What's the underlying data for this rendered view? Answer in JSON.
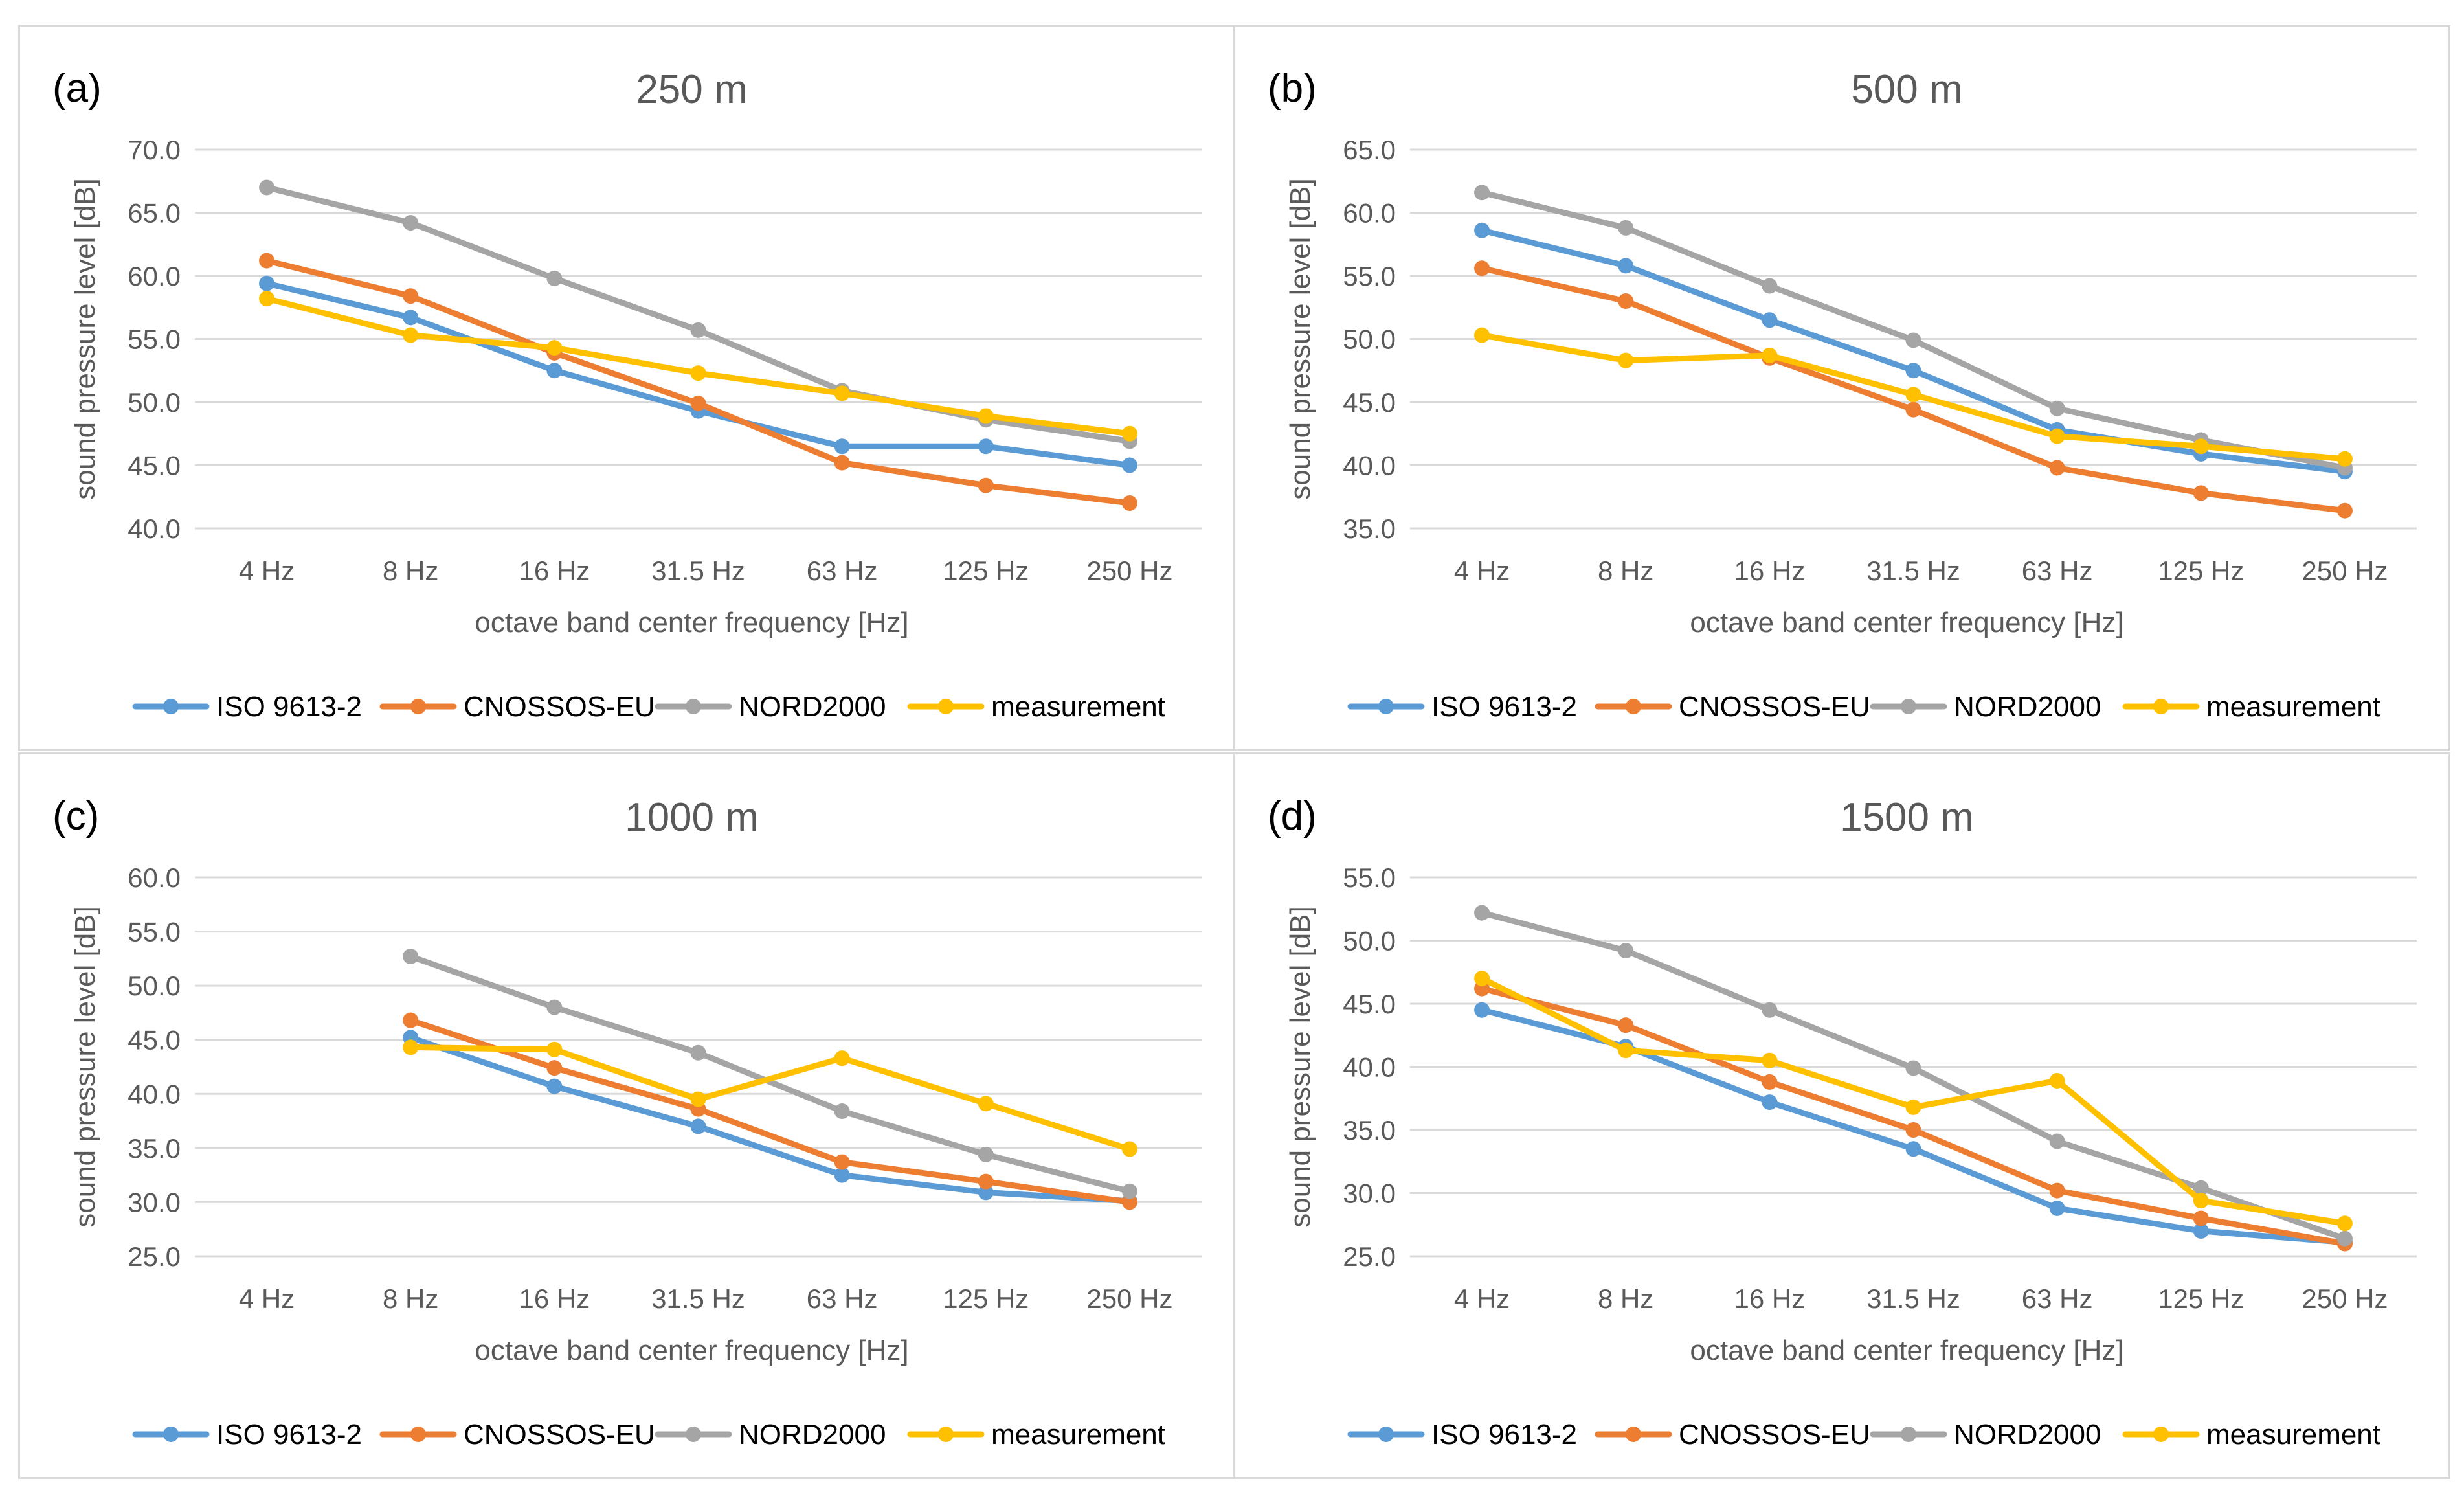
{
  "chart_data": [
    {
      "type": "line",
      "panel_label": "(a)",
      "title": "250 m",
      "xlabel": "octave band center frequency [Hz]",
      "ylabel": "sound pressure level  [dB]",
      "categories": [
        "4 Hz",
        "8 Hz",
        "16 Hz",
        "31.5 Hz",
        "63 Hz",
        "125 Hz",
        "250 Hz"
      ],
      "ylim": [
        40.0,
        70.0
      ],
      "yticks": [
        "40.0",
        "45.0",
        "50.0",
        "55.0",
        "60.0",
        "65.0",
        "70.0"
      ],
      "grid": true,
      "legend": "bottom",
      "series": [
        {
          "name": "ISO 9613-2",
          "color": "#5b9bd5",
          "values": [
            59.4,
            56.7,
            52.5,
            49.3,
            46.5,
            46.5,
            45.0
          ]
        },
        {
          "name": "CNOSSOS-EU",
          "color": "#ed7d31",
          "values": [
            61.2,
            58.4,
            53.9,
            49.9,
            45.2,
            43.4,
            42.0
          ]
        },
        {
          "name": "NORD2000",
          "color": "#a5a5a5",
          "values": [
            67.0,
            64.2,
            59.8,
            55.7,
            50.9,
            48.6,
            46.9
          ]
        },
        {
          "name": "measurement",
          "color": "#ffc000",
          "values": [
            58.2,
            55.3,
            54.3,
            52.3,
            50.7,
            48.9,
            47.5
          ]
        }
      ]
    },
    {
      "type": "line",
      "panel_label": "(b)",
      "title": "500 m",
      "xlabel": "octave band center frequency [Hz]",
      "ylabel": "sound pressure level  [dB]",
      "categories": [
        "4 Hz",
        "8 Hz",
        "16 Hz",
        "31.5 Hz",
        "63 Hz",
        "125 Hz",
        "250 Hz"
      ],
      "ylim": [
        35.0,
        65.0
      ],
      "yticks": [
        "35.0",
        "40.0",
        "45.0",
        "50.0",
        "55.0",
        "60.0",
        "65.0"
      ],
      "grid": true,
      "legend": "bottom",
      "series": [
        {
          "name": "ISO 9613-2",
          "color": "#5b9bd5",
          "values": [
            58.6,
            55.8,
            51.5,
            47.5,
            42.8,
            40.9,
            39.5
          ]
        },
        {
          "name": "CNOSSOS-EU",
          "color": "#ed7d31",
          "values": [
            55.6,
            53.0,
            48.5,
            44.4,
            39.8,
            37.8,
            36.4
          ]
        },
        {
          "name": "NORD2000",
          "color": "#a5a5a5",
          "values": [
            61.6,
            58.8,
            54.2,
            49.9,
            44.5,
            42.0,
            39.8
          ]
        },
        {
          "name": "measurement",
          "color": "#ffc000",
          "values": [
            50.3,
            48.3,
            48.7,
            45.6,
            42.3,
            41.5,
            40.5
          ]
        }
      ]
    },
    {
      "type": "line",
      "panel_label": "(c)",
      "title": "1000 m",
      "xlabel": "octave band center frequency [Hz]",
      "ylabel": "sound pressure level  [dB]",
      "categories": [
        "4 Hz",
        "8 Hz",
        "16 Hz",
        "31.5 Hz",
        "63 Hz",
        "125 Hz",
        "250 Hz"
      ],
      "ylim": [
        25.0,
        60.0
      ],
      "yticks": [
        "25.0",
        "30.0",
        "35.0",
        "40.0",
        "45.0",
        "50.0",
        "55.0",
        "60.0"
      ],
      "grid": true,
      "legend": "bottom",
      "series": [
        {
          "name": "ISO 9613-2",
          "color": "#5b9bd5",
          "values": [
            null,
            45.2,
            40.7,
            37.0,
            32.5,
            30.9,
            30.1
          ]
        },
        {
          "name": "CNOSSOS-EU",
          "color": "#ed7d31",
          "values": [
            null,
            46.8,
            42.4,
            38.6,
            33.7,
            31.9,
            30.0
          ]
        },
        {
          "name": "NORD2000",
          "color": "#a5a5a5",
          "values": [
            null,
            52.7,
            48.0,
            43.8,
            38.4,
            34.4,
            31.0
          ]
        },
        {
          "name": "measurement",
          "color": "#ffc000",
          "values": [
            null,
            44.3,
            44.1,
            39.5,
            43.3,
            39.1,
            34.9
          ]
        }
      ]
    },
    {
      "type": "line",
      "panel_label": "(d)",
      "title": "1500 m",
      "xlabel": "octave band center frequency [Hz]",
      "ylabel": "sound pressure level  [dB]",
      "categories": [
        "4 Hz",
        "8 Hz",
        "16 Hz",
        "31.5 Hz",
        "63 Hz",
        "125 Hz",
        "250 Hz"
      ],
      "ylim": [
        25.0,
        55.0
      ],
      "yticks": [
        "25.0",
        "30.0",
        "35.0",
        "40.0",
        "45.0",
        "50.0",
        "55.0"
      ],
      "grid": true,
      "legend": "bottom",
      "series": [
        {
          "name": "ISO 9613-2",
          "color": "#5b9bd5",
          "values": [
            44.5,
            41.6,
            37.2,
            33.5,
            28.8,
            27.0,
            26.1
          ]
        },
        {
          "name": "CNOSSOS-EU",
          "color": "#ed7d31",
          "values": [
            46.2,
            43.3,
            38.8,
            35.0,
            30.2,
            28.0,
            26.0
          ]
        },
        {
          "name": "NORD2000",
          "color": "#a5a5a5",
          "values": [
            52.2,
            49.2,
            44.5,
            39.9,
            34.1,
            30.4,
            26.4
          ]
        },
        {
          "name": "measurement",
          "color": "#ffc000",
          "values": [
            47.0,
            41.3,
            40.5,
            36.8,
            38.9,
            29.4,
            27.6
          ]
        }
      ]
    }
  ]
}
